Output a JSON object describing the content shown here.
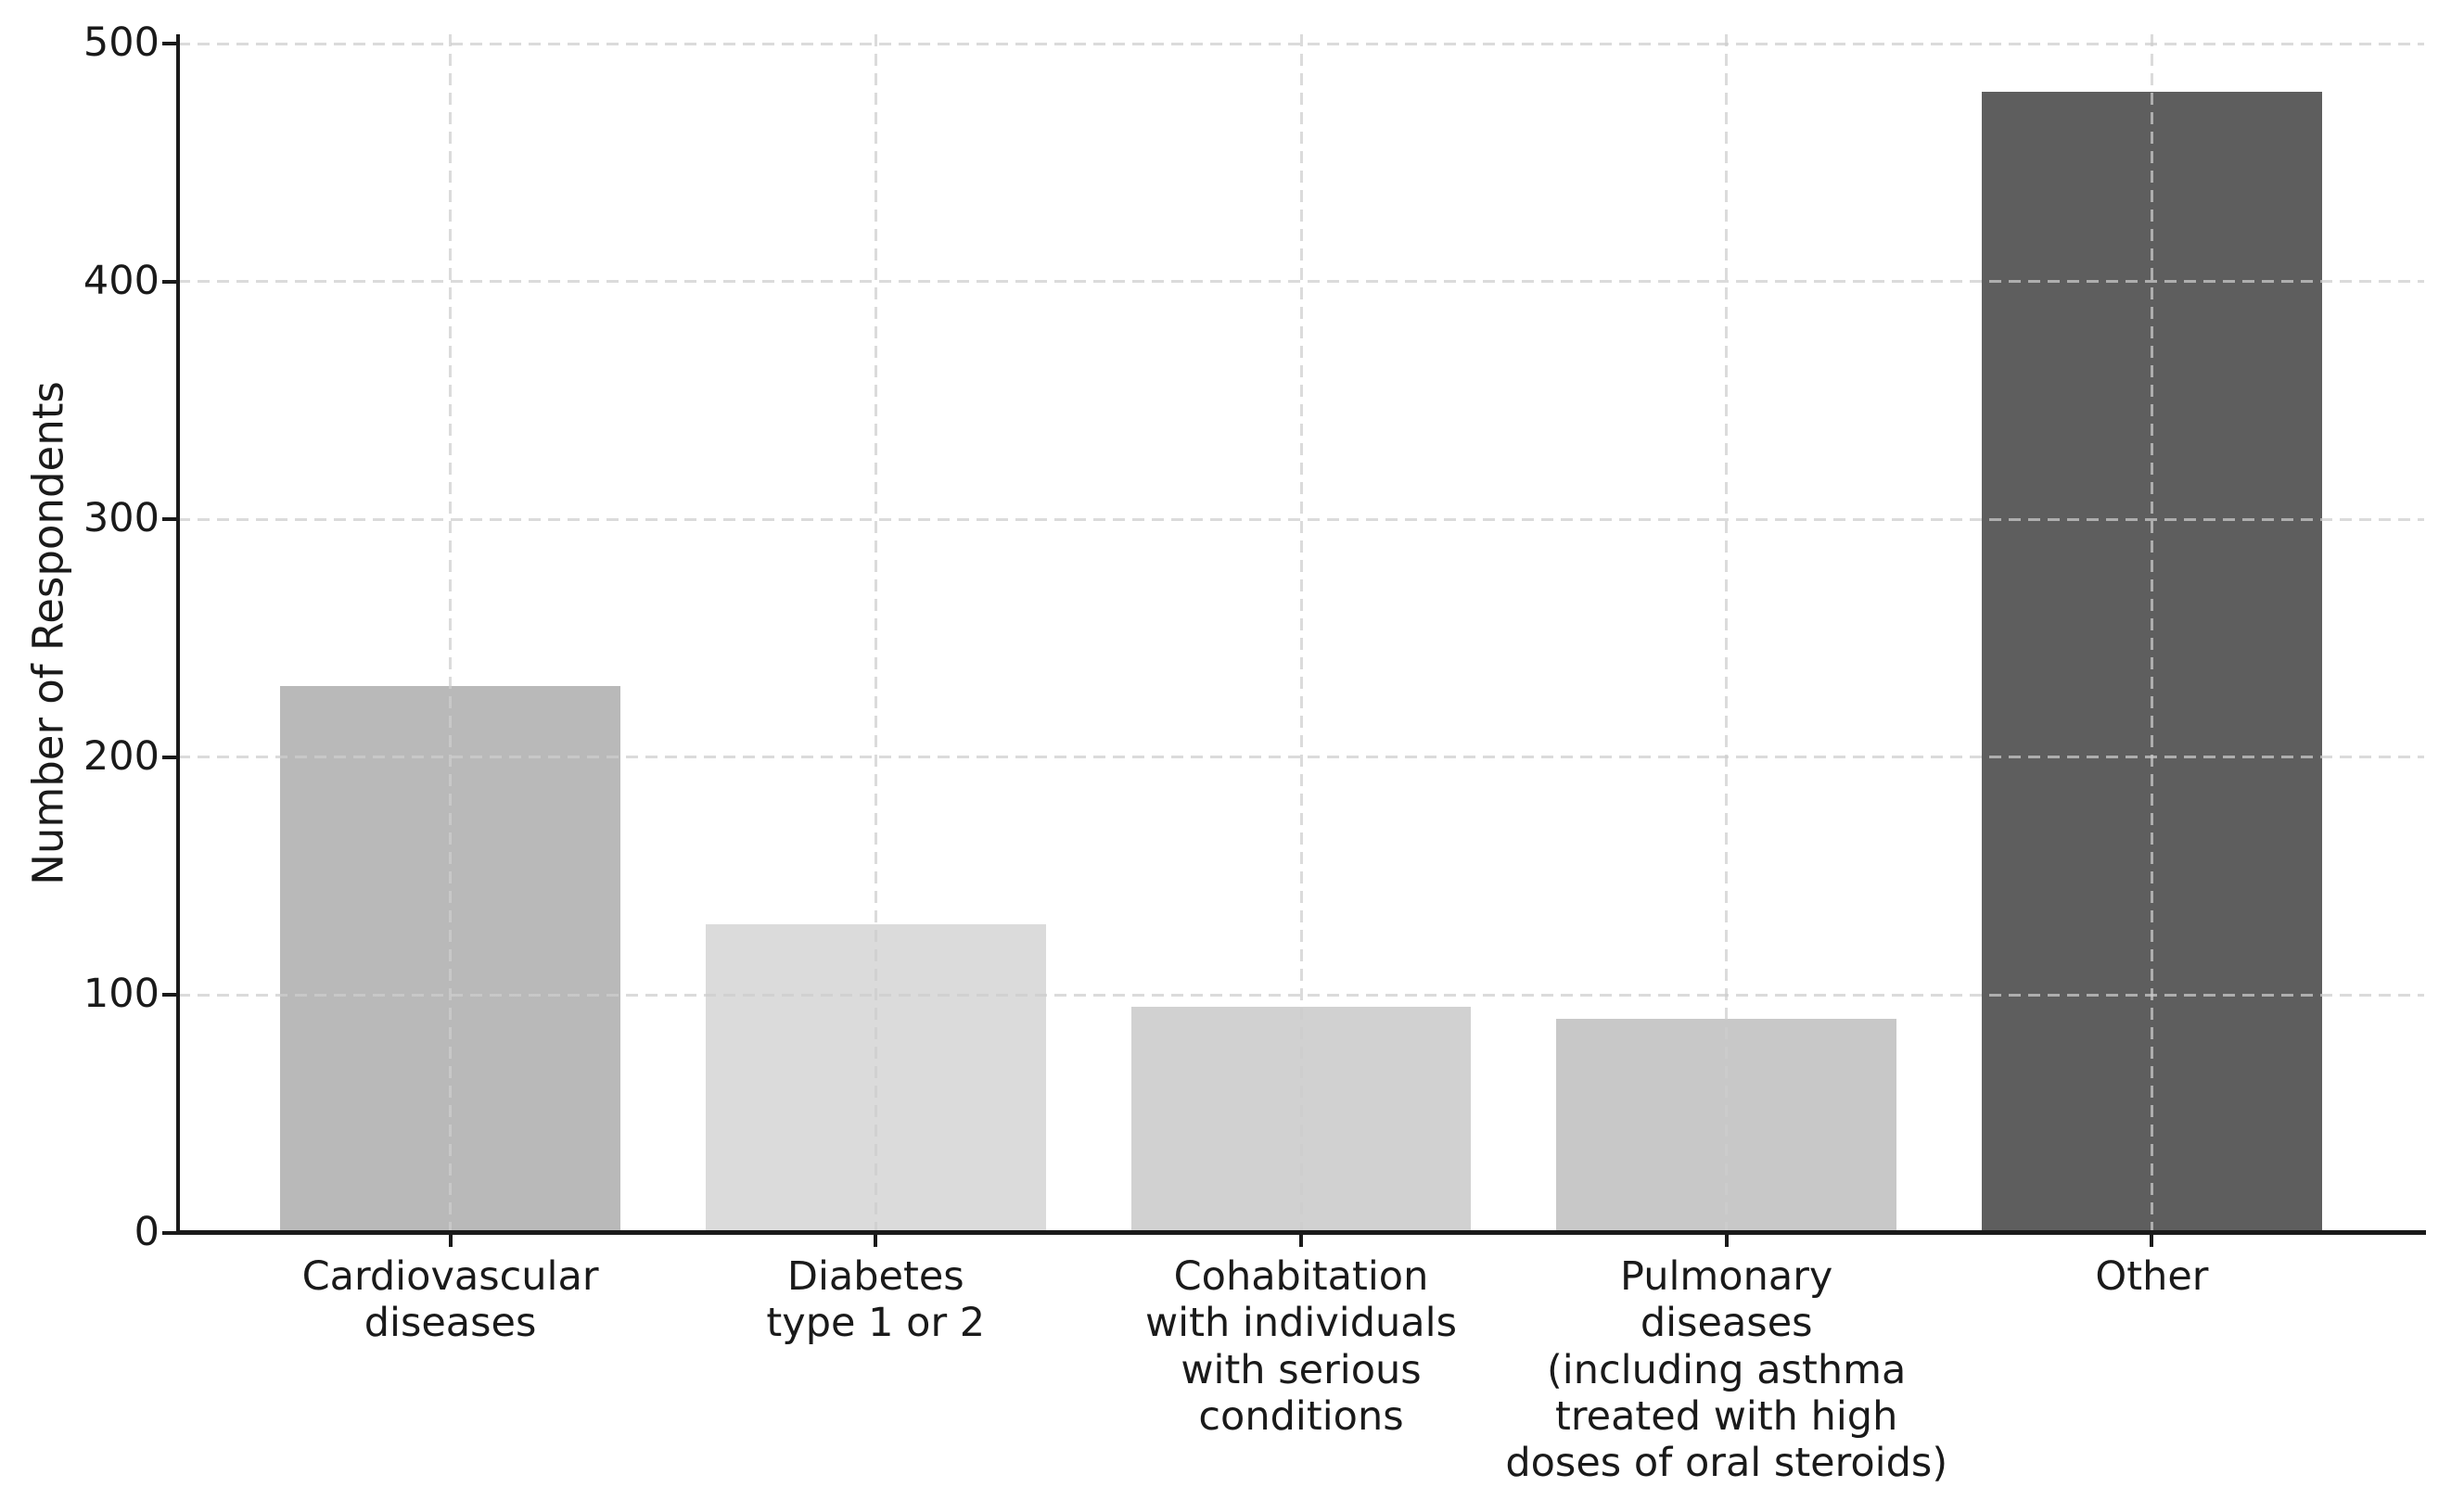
{
  "chart_data": {
    "type": "bar",
    "title": "",
    "xlabel": "",
    "ylabel": "Number of Respondents",
    "categories": [
      "Cardiovascular diseases",
      "Diabetes type 1 or 2",
      "Cohabitation with individuals with serious conditions",
      "Pulmonary diseases (including asthma treated with high doses of oral steroids)",
      "Other"
    ],
    "category_lines": [
      [
        "Cardiovascular",
        "diseases"
      ],
      [
        "Diabetes",
        "type 1 or 2"
      ],
      [
        "Cohabitation",
        "with individuals",
        "with serious",
        "conditions"
      ],
      [
        "Pulmonary",
        "diseases",
        "(including asthma",
        "treated with high",
        "doses of oral steroids)"
      ],
      [
        "Other"
      ]
    ],
    "values": [
      230,
      130,
      95,
      90,
      480
    ],
    "bar_colors": [
      "#b9b9b9",
      "#dbdbdb",
      "#d1d1d1",
      "#c8c8c8",
      "#5e5e5e"
    ],
    "yticks": [
      0,
      100,
      200,
      300,
      400,
      500
    ],
    "ylim": [
      0,
      504
    ],
    "grid": "dashed gridlines on both axes, drawn above bars",
    "legend": "none"
  },
  "colors": {
    "background": "#ffffff",
    "grid": "#cdcdcd",
    "spine": "#1a1a1a",
    "text": "#1a1a1a"
  }
}
